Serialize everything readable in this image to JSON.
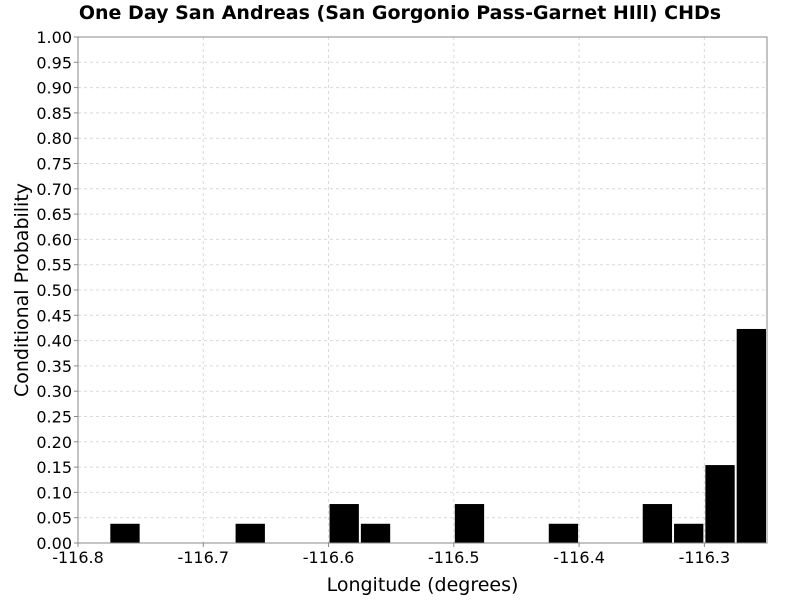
{
  "chart_data": {
    "type": "bar",
    "title": "One Day San Andreas (San Gorgonio Pass-Garnet HIll) CHDs",
    "xlabel": "Longitude (degrees)",
    "ylabel": "Conditional Probability",
    "xlim": [
      -116.8,
      -116.25
    ],
    "ylim": [
      0,
      1.0
    ],
    "grid": true,
    "bar_color": "#000000",
    "grid_color": "#d9d9d9",
    "x_ticks": [
      -116.8,
      -116.7,
      -116.6,
      -116.5,
      -116.4,
      -116.3
    ],
    "x_tick_labels": [
      "-116.8",
      "-116.7",
      "-116.6",
      "-116.5",
      "-116.4",
      "-116.3"
    ],
    "y_ticks": [
      0,
      0.05,
      0.1,
      0.15,
      0.2,
      0.25,
      0.3,
      0.35,
      0.4,
      0.45,
      0.5,
      0.55,
      0.6,
      0.65,
      0.7,
      0.75,
      0.8,
      0.85,
      0.9,
      0.95,
      1.0
    ],
    "y_tick_labels": [
      "0.00",
      "0.05",
      "0.10",
      "0.15",
      "0.20",
      "0.25",
      "0.30",
      "0.35",
      "0.40",
      "0.45",
      "0.50",
      "0.55",
      "0.60",
      "0.65",
      "0.70",
      "0.75",
      "0.80",
      "0.85",
      "0.90",
      "0.95",
      "1.00"
    ],
    "bins": [
      {
        "x0": -116.775,
        "x1": -116.75,
        "value": 0.038
      },
      {
        "x0": -116.675,
        "x1": -116.65,
        "value": 0.038
      },
      {
        "x0": -116.6,
        "x1": -116.575,
        "value": 0.077
      },
      {
        "x0": -116.575,
        "x1": -116.55,
        "value": 0.038
      },
      {
        "x0": -116.5,
        "x1": -116.475,
        "value": 0.077
      },
      {
        "x0": -116.425,
        "x1": -116.4,
        "value": 0.038
      },
      {
        "x0": -116.35,
        "x1": -116.325,
        "value": 0.077
      },
      {
        "x0": -116.325,
        "x1": -116.3,
        "value": 0.038
      },
      {
        "x0": -116.3,
        "x1": -116.275,
        "value": 0.154
      },
      {
        "x0": -116.275,
        "x1": -116.25,
        "value": 0.423
      }
    ]
  }
}
